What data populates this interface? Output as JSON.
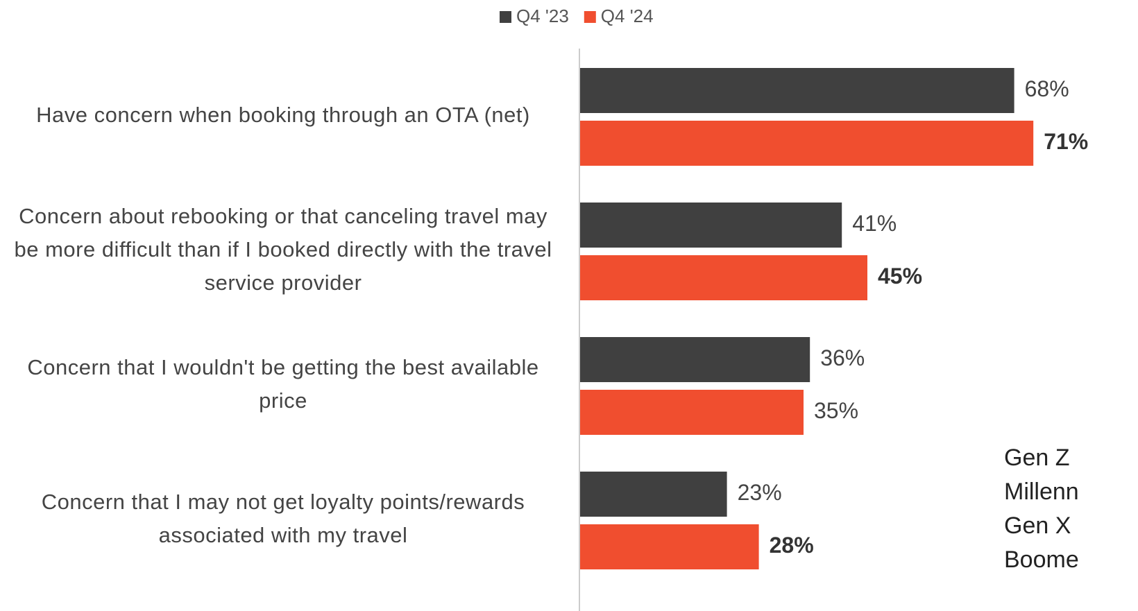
{
  "chart_data": {
    "type": "bar",
    "orientation": "horizontal",
    "categories": [
      "Have concern when booking through an OTA (net)",
      "Concern about rebooking or that canceling travel may be more difficult than if I booked directly with the travel service provider",
      "Concern that I wouldn't be getting the best available price",
      "Concern that I may not get loyalty points/rewards associated with my travel"
    ],
    "series": [
      {
        "name": "Q4 '23",
        "color": "#404040",
        "values": [
          68,
          41,
          36,
          23
        ],
        "value_labels": [
          "68%",
          "41%",
          "36%",
          "23%"
        ]
      },
      {
        "name": "Q4 '24",
        "color": "#f04e2f",
        "values": [
          71,
          45,
          35,
          28
        ],
        "value_labels": [
          "71%",
          "45%",
          "35%",
          "28%"
        ]
      }
    ],
    "xlim": [
      0,
      100
    ],
    "legend": "top",
    "annotations": [
      "Gen Z",
      "Millenn",
      "Gen X",
      "Boome"
    ]
  }
}
